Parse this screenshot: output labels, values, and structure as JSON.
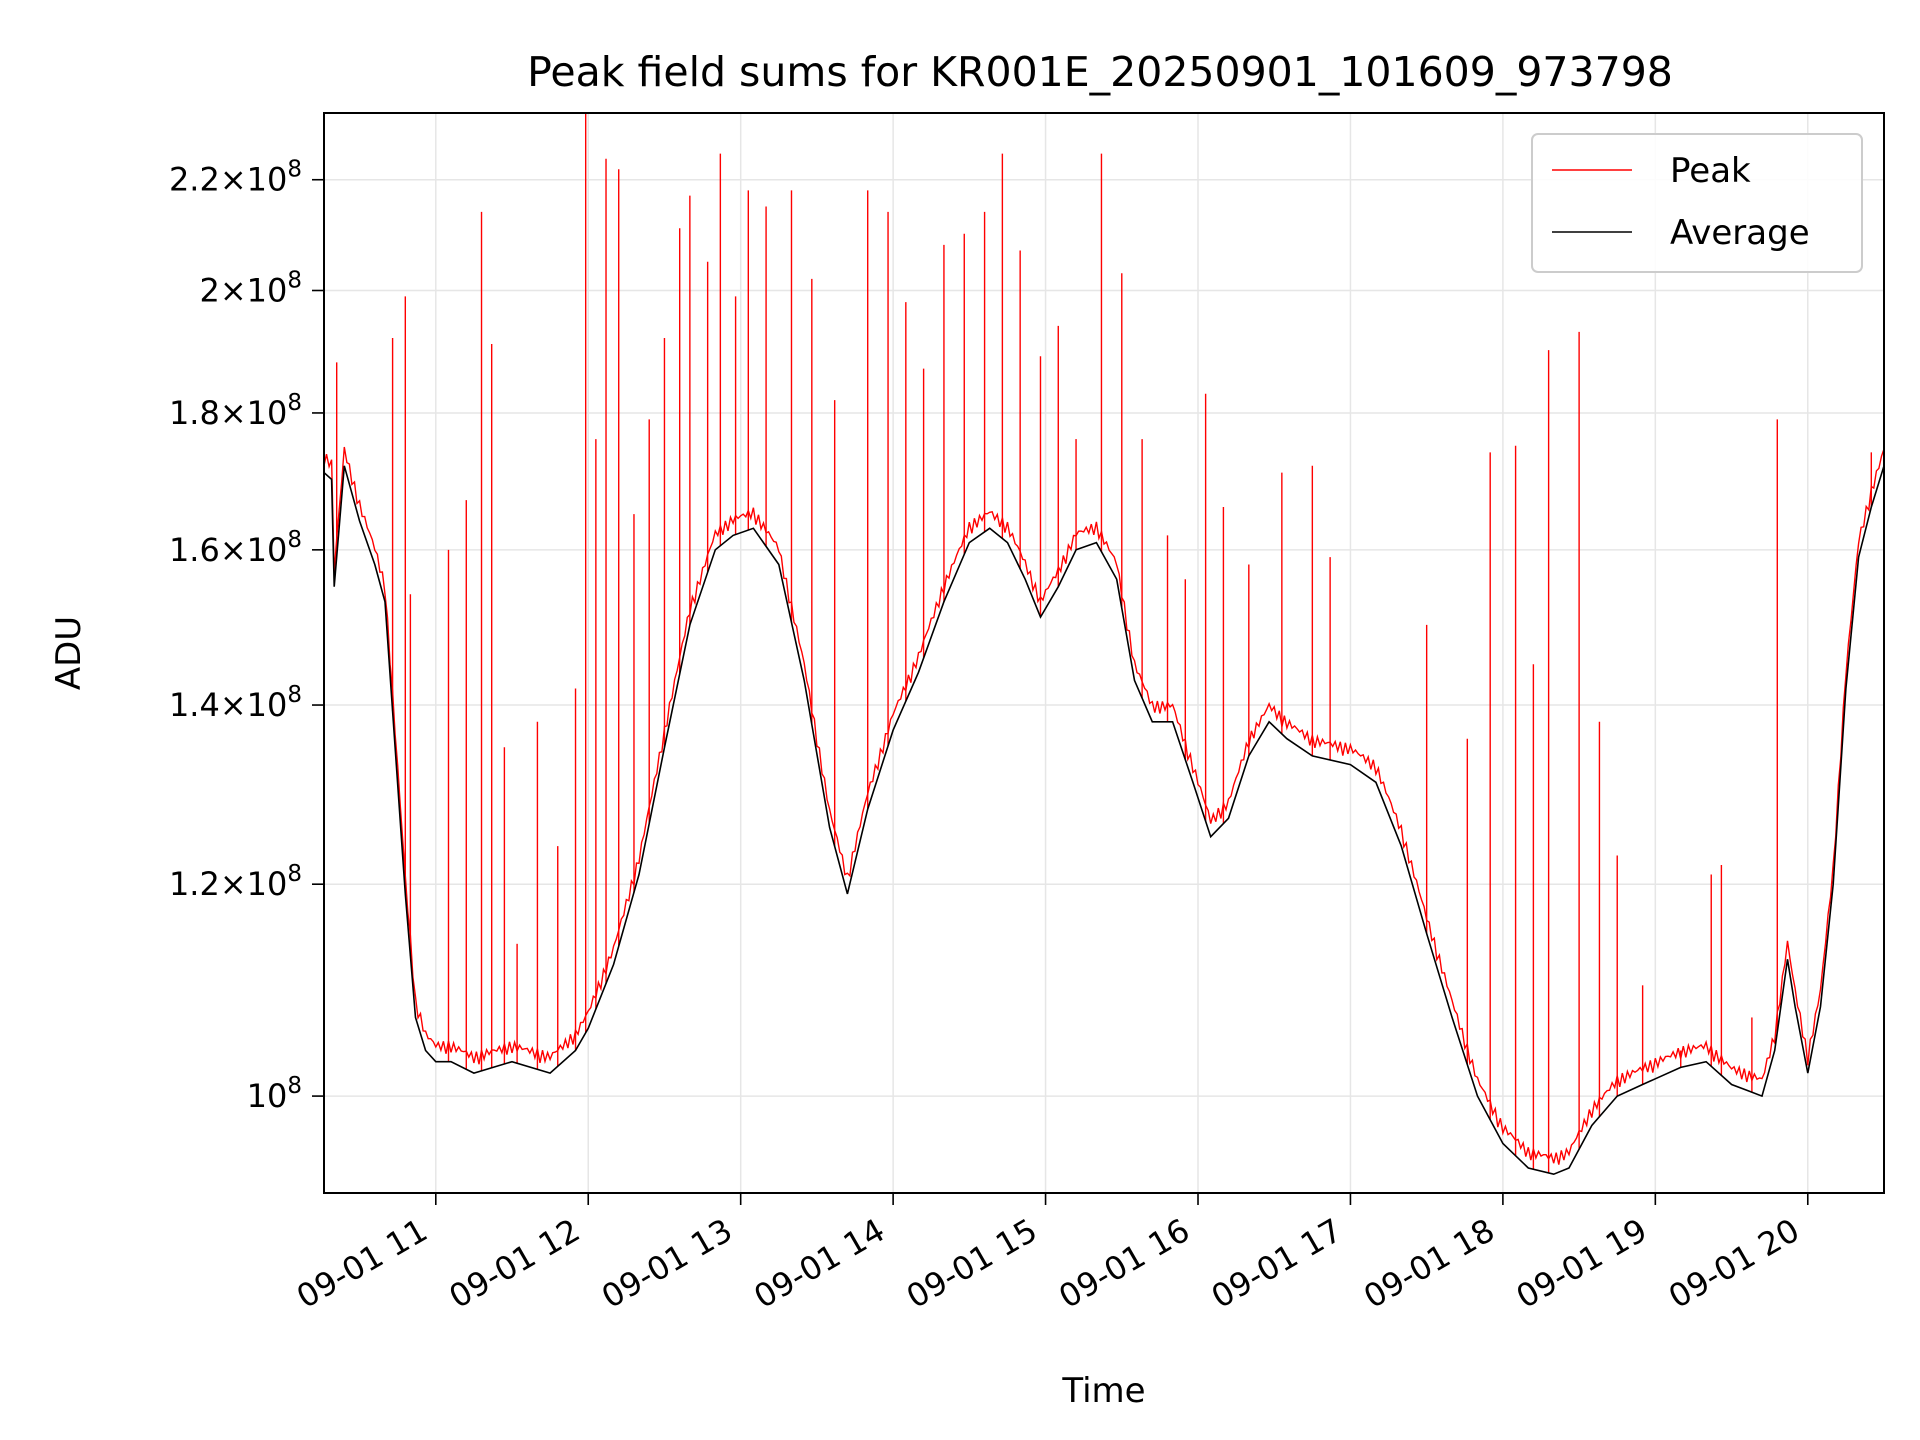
{
  "chart_data": {
    "type": "line",
    "title": "Peak field sums for KR001E_20250901_101609_973798",
    "xlabel": "Time",
    "ylabel": "ADU",
    "y_scale": "log",
    "xlim": [
      "2025-09-01T10:16",
      "2025-09-01T20:30"
    ],
    "ylim": [
      92000000,
      233000000
    ],
    "x_ticks": [
      {
        "value": "2025-09-01T11:00",
        "label": "09-01 11"
      },
      {
        "value": "2025-09-01T12:00",
        "label": "09-01 12"
      },
      {
        "value": "2025-09-01T13:00",
        "label": "09-01 13"
      },
      {
        "value": "2025-09-01T14:00",
        "label": "09-01 14"
      },
      {
        "value": "2025-09-01T15:00",
        "label": "09-01 15"
      },
      {
        "value": "2025-09-01T16:00",
        "label": "09-01 16"
      },
      {
        "value": "2025-09-01T17:00",
        "label": "09-01 17"
      },
      {
        "value": "2025-09-01T18:00",
        "label": "09-01 18"
      },
      {
        "value": "2025-09-01T19:00",
        "label": "09-01 19"
      },
      {
        "value": "2025-09-01T20:00",
        "label": "09-01 20"
      }
    ],
    "y_ticks": [
      {
        "value": 100000000,
        "mantissa": "",
        "exponent": "8"
      },
      {
        "value": 120000000,
        "mantissa": "1.2",
        "exponent": "8"
      },
      {
        "value": 140000000,
        "mantissa": "1.4",
        "exponent": "8"
      },
      {
        "value": 160000000,
        "mantissa": "1.6",
        "exponent": "8"
      },
      {
        "value": 180000000,
        "mantissa": "1.8",
        "exponent": "8"
      },
      {
        "value": 200000000,
        "mantissa": "2",
        "exponent": "8"
      },
      {
        "value": 220000000,
        "mantissa": "2.2",
        "exponent": "8"
      }
    ],
    "grid": true,
    "legend_position": "top-right",
    "series": [
      {
        "name": "Average",
        "color": "#000000",
        "x": [
          "2025-09-01T10:16",
          "2025-09-01T10:19",
          "2025-09-01T10:20",
          "2025-09-01T10:24",
          "2025-09-01T10:30",
          "2025-09-01T10:36",
          "2025-09-01T10:40",
          "2025-09-01T10:44",
          "2025-09-01T10:48",
          "2025-09-01T10:52",
          "2025-09-01T10:56",
          "2025-09-01T11:00",
          "2025-09-01T11:06",
          "2025-09-01T11:15",
          "2025-09-01T11:30",
          "2025-09-01T11:45",
          "2025-09-01T11:55",
          "2025-09-01T12:00",
          "2025-09-01T12:10",
          "2025-09-01T12:20",
          "2025-09-01T12:30",
          "2025-09-01T12:40",
          "2025-09-01T12:50",
          "2025-09-01T12:57",
          "2025-09-01T13:05",
          "2025-09-01T13:15",
          "2025-09-01T13:25",
          "2025-09-01T13:35",
          "2025-09-01T13:42",
          "2025-09-01T13:50",
          "2025-09-01T14:00",
          "2025-09-01T14:10",
          "2025-09-01T14:20",
          "2025-09-01T14:30",
          "2025-09-01T14:38",
          "2025-09-01T14:45",
          "2025-09-01T14:52",
          "2025-09-01T14:58",
          "2025-09-01T15:05",
          "2025-09-01T15:12",
          "2025-09-01T15:20",
          "2025-09-01T15:28",
          "2025-09-01T15:35",
          "2025-09-01T15:42",
          "2025-09-01T15:50",
          "2025-09-01T15:58",
          "2025-09-01T16:05",
          "2025-09-01T16:12",
          "2025-09-01T16:20",
          "2025-09-01T16:28",
          "2025-09-01T16:35",
          "2025-09-01T16:45",
          "2025-09-01T17:00",
          "2025-09-01T17:10",
          "2025-09-01T17:20",
          "2025-09-01T17:30",
          "2025-09-01T17:40",
          "2025-09-01T17:50",
          "2025-09-01T18:00",
          "2025-09-01T18:10",
          "2025-09-01T18:20",
          "2025-09-01T18:26",
          "2025-09-01T18:35",
          "2025-09-01T18:45",
          "2025-09-01T18:55",
          "2025-09-01T19:00",
          "2025-09-01T19:10",
          "2025-09-01T19:20",
          "2025-09-01T19:30",
          "2025-09-01T19:36",
          "2025-09-01T19:42",
          "2025-09-01T19:47",
          "2025-09-01T19:52",
          "2025-09-01T19:55",
          "2025-09-01T20:00",
          "2025-09-01T20:05",
          "2025-09-01T20:10",
          "2025-09-01T20:15",
          "2025-09-01T20:20",
          "2025-09-01T20:25",
          "2025-09-01T20:30"
        ],
        "values": [
          171000000,
          170000000,
          155000000,
          172000000,
          164000000,
          158000000,
          153000000,
          135000000,
          119000000,
          107000000,
          104000000,
          103000000,
          103000000,
          102000000,
          103000000,
          102000000,
          104000000,
          106000000,
          112000000,
          121000000,
          135000000,
          150000000,
          160000000,
          162000000,
          163000000,
          158000000,
          143000000,
          126000000,
          119000000,
          128000000,
          137000000,
          144000000,
          153000000,
          161000000,
          163000000,
          161000000,
          156000000,
          151000000,
          155000000,
          160000000,
          161000000,
          156000000,
          143000000,
          138000000,
          138000000,
          131000000,
          125000000,
          127000000,
          134000000,
          138000000,
          136000000,
          134000000,
          133000000,
          131000000,
          124000000,
          115000000,
          107000000,
          100000000,
          96000000,
          94000000,
          93500000,
          94000000,
          97500000,
          100000000,
          101000000,
          101500000,
          102500000,
          103000000,
          101000000,
          100500000,
          100000000,
          104000000,
          112500000,
          108000000,
          102000000,
          108000000,
          120000000,
          142000000,
          159000000,
          166000000,
          172000000
        ]
      },
      {
        "name": "Peak",
        "color": "#ff0000",
        "spikes": [
          {
            "x": "2025-09-01T10:21",
            "y": 188000000
          },
          {
            "x": "2025-09-01T10:43",
            "y": 192000000
          },
          {
            "x": "2025-09-01T10:48",
            "y": 199000000
          },
          {
            "x": "2025-09-01T10:50",
            "y": 154000000
          },
          {
            "x": "2025-09-01T11:05",
            "y": 160000000
          },
          {
            "x": "2025-09-01T11:12",
            "y": 167000000
          },
          {
            "x": "2025-09-01T11:18",
            "y": 214000000
          },
          {
            "x": "2025-09-01T11:22",
            "y": 191000000
          },
          {
            "x": "2025-09-01T11:27",
            "y": 135000000
          },
          {
            "x": "2025-09-01T11:32",
            "y": 114000000
          },
          {
            "x": "2025-09-01T11:40",
            "y": 138000000
          },
          {
            "x": "2025-09-01T11:48",
            "y": 124000000
          },
          {
            "x": "2025-09-01T11:55",
            "y": 142000000
          },
          {
            "x": "2025-09-01T11:59",
            "y": 233000000
          },
          {
            "x": "2025-09-01T12:03",
            "y": 176000000
          },
          {
            "x": "2025-09-01T12:07",
            "y": 224000000
          },
          {
            "x": "2025-09-01T12:12",
            "y": 222000000
          },
          {
            "x": "2025-09-01T12:18",
            "y": 165000000
          },
          {
            "x": "2025-09-01T12:24",
            "y": 179000000
          },
          {
            "x": "2025-09-01T12:30",
            "y": 192000000
          },
          {
            "x": "2025-09-01T12:36",
            "y": 211000000
          },
          {
            "x": "2025-09-01T12:40",
            "y": 217000000
          },
          {
            "x": "2025-09-01T12:47",
            "y": 205000000
          },
          {
            "x": "2025-09-01T12:52",
            "y": 225000000
          },
          {
            "x": "2025-09-01T12:58",
            "y": 199000000
          },
          {
            "x": "2025-09-01T13:03",
            "y": 218000000
          },
          {
            "x": "2025-09-01T13:10",
            "y": 215000000
          },
          {
            "x": "2025-09-01T13:20",
            "y": 218000000
          },
          {
            "x": "2025-09-01T13:28",
            "y": 202000000
          },
          {
            "x": "2025-09-01T13:37",
            "y": 182000000
          },
          {
            "x": "2025-09-01T13:50",
            "y": 218000000
          },
          {
            "x": "2025-09-01T13:58",
            "y": 214000000
          },
          {
            "x": "2025-09-01T14:05",
            "y": 198000000
          },
          {
            "x": "2025-09-01T14:12",
            "y": 187000000
          },
          {
            "x": "2025-09-01T14:20",
            "y": 208000000
          },
          {
            "x": "2025-09-01T14:28",
            "y": 210000000
          },
          {
            "x": "2025-09-01T14:36",
            "y": 214000000
          },
          {
            "x": "2025-09-01T14:43",
            "y": 225000000
          },
          {
            "x": "2025-09-01T14:50",
            "y": 207000000
          },
          {
            "x": "2025-09-01T14:58",
            "y": 189000000
          },
          {
            "x": "2025-09-01T15:05",
            "y": 194000000
          },
          {
            "x": "2025-09-01T15:12",
            "y": 176000000
          },
          {
            "x": "2025-09-01T15:22",
            "y": 225000000
          },
          {
            "x": "2025-09-01T15:30",
            "y": 203000000
          },
          {
            "x": "2025-09-01T15:38",
            "y": 176000000
          },
          {
            "x": "2025-09-01T15:48",
            "y": 162000000
          },
          {
            "x": "2025-09-01T15:55",
            "y": 156000000
          },
          {
            "x": "2025-09-01T16:03",
            "y": 183000000
          },
          {
            "x": "2025-09-01T16:10",
            "y": 166000000
          },
          {
            "x": "2025-09-01T16:20",
            "y": 158000000
          },
          {
            "x": "2025-09-01T16:33",
            "y": 171000000
          },
          {
            "x": "2025-09-01T16:45",
            "y": 172000000
          },
          {
            "x": "2025-09-01T16:52",
            "y": 159000000
          },
          {
            "x": "2025-09-01T17:30",
            "y": 150000000
          },
          {
            "x": "2025-09-01T17:46",
            "y": 136000000
          },
          {
            "x": "2025-09-01T17:55",
            "y": 174000000
          },
          {
            "x": "2025-09-01T18:05",
            "y": 175000000
          },
          {
            "x": "2025-09-01T18:12",
            "y": 145000000
          },
          {
            "x": "2025-09-01T18:18",
            "y": 190000000
          },
          {
            "x": "2025-09-01T18:30",
            "y": 193000000
          },
          {
            "x": "2025-09-01T18:38",
            "y": 138000000
          },
          {
            "x": "2025-09-01T18:45",
            "y": 123000000
          },
          {
            "x": "2025-09-01T18:55",
            "y": 110000000
          },
          {
            "x": "2025-09-01T19:10",
            "y": 104000000
          },
          {
            "x": "2025-09-01T19:22",
            "y": 121000000
          },
          {
            "x": "2025-09-01T19:26",
            "y": 122000000
          },
          {
            "x": "2025-09-01T19:38",
            "y": 107000000
          },
          {
            "x": "2025-09-01T19:48",
            "y": 179000000
          },
          {
            "x": "2025-09-01T20:25",
            "y": 174000000
          }
        ]
      }
    ]
  }
}
